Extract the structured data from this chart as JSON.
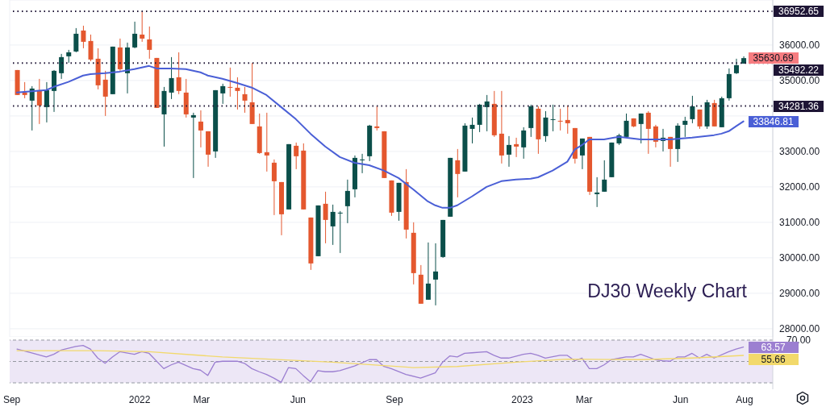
{
  "chart_data": [
    {
      "type": "candlestick",
      "x": [
        "2021-09-06",
        "2021-09-13",
        "2021-09-20",
        "2021-09-27",
        "2021-10-04",
        "2021-10-11",
        "2021-10-18",
        "2021-10-25",
        "2021-11-01",
        "2021-11-08",
        "2021-11-15",
        "2021-11-22",
        "2021-11-29",
        "2021-12-06",
        "2021-12-13",
        "2021-12-20",
        "2021-12-27",
        "2022-01-03",
        "2022-01-10",
        "2022-01-17",
        "2022-01-24",
        "2022-01-31",
        "2022-02-07",
        "2022-02-14",
        "2022-02-21",
        "2022-02-28",
        "2022-03-07",
        "2022-03-14",
        "2022-03-21",
        "2022-03-28",
        "2022-04-04",
        "2022-04-11",
        "2022-04-18",
        "2022-04-25",
        "2022-05-02",
        "2022-05-09",
        "2022-05-16",
        "2022-05-23",
        "2022-05-30",
        "2022-06-06",
        "2022-06-13",
        "2022-06-20",
        "2022-06-27",
        "2022-07-04",
        "2022-07-11",
        "2022-07-18",
        "2022-07-25",
        "2022-08-01",
        "2022-08-08",
        "2022-08-15",
        "2022-08-22",
        "2022-08-29",
        "2022-09-05",
        "2022-09-12",
        "2022-09-19",
        "2022-09-26",
        "2022-10-03",
        "2022-10-10",
        "2022-10-17",
        "2022-10-24",
        "2022-10-31",
        "2022-11-07",
        "2022-11-14",
        "2022-11-21",
        "2022-11-28",
        "2022-12-05",
        "2022-12-12",
        "2022-12-19",
        "2022-12-26",
        "2023-01-02",
        "2023-01-09",
        "2023-01-16",
        "2023-01-23",
        "2023-01-30",
        "2023-02-06",
        "2023-02-13",
        "2023-02-20",
        "2023-02-27",
        "2023-03-06",
        "2023-03-13",
        "2023-03-20",
        "2023-03-27",
        "2023-04-03",
        "2023-04-10",
        "2023-04-17",
        "2023-04-24",
        "2023-05-01",
        "2023-05-08",
        "2023-05-15",
        "2023-05-22",
        "2023-05-29",
        "2023-06-05",
        "2023-06-12",
        "2023-06-19",
        "2023-06-26",
        "2023-07-03",
        "2023-07-10",
        "2023-07-17",
        "2023-07-24",
        "2023-07-31"
      ],
      "ohlc": [
        [
          35295,
          35295,
          34591,
          34591
        ],
        [
          34659,
          34955,
          34500,
          34591
        ],
        [
          34432,
          34841,
          33591,
          34773
        ],
        [
          34727,
          35045,
          33773,
          34295
        ],
        [
          34250,
          34955,
          33818,
          34727
        ],
        [
          34705,
          35295,
          34114,
          35273
        ],
        [
          35205,
          35750,
          35045,
          35659
        ],
        [
          35682,
          35864,
          35500,
          35795
        ],
        [
          35818,
          36477,
          35795,
          36318
        ],
        [
          36409,
          36545,
          35909,
          36091
        ],
        [
          36114,
          36295,
          35545,
          35591
        ],
        [
          35614,
          35909,
          34750,
          34864
        ],
        [
          35023,
          35273,
          34000,
          34545
        ],
        [
          34614,
          35955,
          34614,
          35955
        ],
        [
          35932,
          36182,
          35273,
          35318
        ],
        [
          35205,
          36068,
          34636,
          35932
        ],
        [
          35932,
          36659,
          35909,
          36318
        ],
        [
          36295,
          36952.65,
          36091,
          36182
        ],
        [
          36159,
          36523,
          35614,
          35864
        ],
        [
          35636,
          35636,
          34227,
          34227
        ],
        [
          34045,
          34818,
          33136,
          34705
        ],
        [
          34659,
          35659,
          34477,
          35068
        ],
        [
          35091,
          35795,
          34614,
          34705
        ],
        [
          34659,
          35045,
          33955,
          34045
        ],
        [
          33955,
          34091,
          32250,
          34023
        ],
        [
          33841,
          34159,
          33114,
          33591
        ],
        [
          33568,
          33568,
          32568,
          32909
        ],
        [
          33000,
          34727,
          32818,
          34727
        ],
        [
          34636,
          34909,
          34341,
          34841
        ],
        [
          34818,
          35364,
          34545,
          34795
        ],
        [
          34795,
          35091,
          34182,
          34705
        ],
        [
          34614,
          34818,
          34091,
          34432
        ],
        [
          34386,
          35492.22,
          33773,
          33773
        ],
        [
          33705,
          34068,
          32932,
          32955
        ],
        [
          32977,
          34091,
          32432,
          32886
        ],
        [
          32682,
          32773,
          31205,
          32159
        ],
        [
          32136,
          32136,
          30636,
          31227
        ],
        [
          31364,
          33205,
          31364,
          33205
        ],
        [
          33159,
          33250,
          32500,
          32864
        ],
        [
          33023,
          33227,
          31364,
          31364
        ],
        [
          31136,
          31136,
          29659,
          29841
        ],
        [
          30045,
          31477,
          30045,
          31477
        ],
        [
          31523,
          31864,
          30409,
          31068
        ],
        [
          30886,
          31500,
          30364,
          31295
        ],
        [
          31250,
          31318,
          30136,
          31273
        ],
        [
          31455,
          32205,
          30977,
          31886
        ],
        [
          31932,
          32886,
          31705,
          32818
        ],
        [
          32750,
          32932,
          32386,
          32773
        ],
        [
          32864,
          33750,
          32727,
          33727
        ],
        [
          33705,
          34281.36,
          33591,
          33659
        ],
        [
          33568,
          33568,
          32250,
          32250
        ],
        [
          32182,
          32182,
          31182,
          31273
        ],
        [
          31295,
          32114,
          31045,
          32114
        ],
        [
          32136,
          32500,
          30545,
          30795
        ],
        [
          30705,
          31000,
          29250,
          29568
        ],
        [
          29523,
          29795,
          28705,
          28705
        ],
        [
          28818,
          30432,
          28818,
          29273
        ],
        [
          29386,
          30409,
          28659,
          29614
        ],
        [
          30023,
          31068,
          30000,
          31068
        ],
        [
          31159,
          32818,
          31159,
          32818
        ],
        [
          32750,
          33068,
          31705,
          32364
        ],
        [
          32432,
          33795,
          32432,
          33727
        ],
        [
          33636,
          33955,
          33227,
          33750
        ],
        [
          33750,
          34341,
          33545,
          34318
        ],
        [
          34250,
          34591,
          33568,
          34409
        ],
        [
          34341,
          34705,
          33409,
          33455
        ],
        [
          33500,
          34705,
          32659,
          32886
        ],
        [
          32909,
          33432,
          32568,
          33182
        ],
        [
          33205,
          33386,
          32841,
          33136
        ],
        [
          33114,
          33682,
          32795,
          33591
        ],
        [
          33659,
          34318,
          33409,
          34273
        ],
        [
          34205,
          34273,
          32932,
          33341
        ],
        [
          33432,
          34136,
          33273,
          33955
        ],
        [
          33886,
          34318,
          33568,
          33909
        ],
        [
          33864,
          34205,
          33591,
          33841
        ],
        [
          33886,
          34295,
          33500,
          33795
        ],
        [
          33659,
          33659,
          32659,
          32795
        ],
        [
          32886,
          33364,
          32500,
          33364
        ],
        [
          33409,
          33409,
          31773,
          31864
        ],
        [
          31795,
          32273,
          31432,
          31841
        ],
        [
          31864,
          32750,
          31864,
          32205
        ],
        [
          32273,
          33250,
          32273,
          33250
        ],
        [
          33227,
          33500,
          33182,
          33455
        ],
        [
          33409,
          34068,
          33409,
          33864
        ],
        [
          33932,
          33932,
          33682,
          33705
        ],
        [
          33773,
          34068,
          33227,
          34068
        ],
        [
          34091,
          34136,
          32932,
          33636
        ],
        [
          33705,
          33750,
          33114,
          33273
        ],
        [
          33295,
          33636,
          33000,
          33386
        ],
        [
          33409,
          33409,
          32568,
          33068
        ],
        [
          33068,
          33795,
          32705,
          33727
        ],
        [
          33750,
          33977,
          33409,
          33864
        ],
        [
          33909,
          34568,
          33795,
          34273
        ],
        [
          34182,
          34182,
          33636,
          33705
        ],
        [
          33705,
          34455,
          33636,
          34386
        ],
        [
          34364,
          34455,
          33705,
          33705
        ],
        [
          33682,
          34545,
          33682,
          34500
        ],
        [
          34500,
          35341,
          34432,
          35182
        ],
        [
          35205,
          35614,
          35182,
          35432
        ],
        [
          35477,
          35682,
          35477,
          35630.69
        ]
      ],
      "colors": [
        "#e4572e",
        "#e4572e",
        "#0b4f4a",
        "#e4572e",
        "#0b4f4a",
        "#0b4f4a",
        "#0b4f4a",
        "#0b4f4a",
        "#0b4f4a",
        "#e4572e",
        "#e4572e",
        "#e4572e",
        "#e4572e",
        "#0b4f4a",
        "#e4572e",
        "#0b4f4a",
        "#0b4f4a",
        "#e4572e",
        "#e4572e",
        "#e4572e",
        "#0b4f4a",
        "#0b4f4a",
        "#e4572e",
        "#e4572e",
        "#0b4f4a",
        "#e4572e",
        "#e4572e",
        "#0b4f4a",
        "#0b4f4a",
        "#e4572e",
        "#e4572e",
        "#e4572e",
        "#e4572e",
        "#e4572e",
        "#e4572e",
        "#e4572e",
        "#e4572e",
        "#0b4f4a",
        "#e4572e",
        "#e4572e",
        "#e4572e",
        "#0b4f4a",
        "#e4572e",
        "#0b4f4a",
        "#0b4f4a",
        "#0b4f4a",
        "#0b4f4a",
        "#0b4f4a",
        "#0b4f4a",
        "#e4572e",
        "#e4572e",
        "#e4572e",
        "#0b4f4a",
        "#e4572e",
        "#e4572e",
        "#e4572e",
        "#0b4f4a",
        "#0b4f4a",
        "#0b4f4a",
        "#0b4f4a",
        "#e4572e",
        "#0b4f4a",
        "#0b4f4a",
        "#0b4f4a",
        "#0b4f4a",
        "#e4572e",
        "#e4572e",
        "#0b4f4a",
        "#e4572e",
        "#0b4f4a",
        "#0b4f4a",
        "#e4572e",
        "#0b4f4a",
        "#0b4f4a",
        "#e4572e",
        "#e4572e",
        "#e4572e",
        "#0b4f4a",
        "#e4572e",
        "#0b4f4a",
        "#0b4f4a",
        "#0b4f4a",
        "#0b4f4a",
        "#0b4f4a",
        "#e4572e",
        "#0b4f4a",
        "#e4572e",
        "#e4572e",
        "#0b4f4a",
        "#e4572e",
        "#0b4f4a",
        "#0b4f4a",
        "#0b4f4a",
        "#e4572e",
        "#0b4f4a",
        "#e4572e",
        "#0b4f4a",
        "#0b4f4a",
        "#0b4f4a",
        "#0b4f4a"
      ],
      "series": [
        {
          "type": "line",
          "color": "#4a5fd6",
          "x": [
            "2021-09-06",
            "2021-10-04",
            "2021-10-11",
            "2021-10-25",
            "2021-11-08",
            "2021-11-15",
            "2021-11-29",
            "2021-12-13",
            "2021-12-27",
            "2022-01-10",
            "2022-01-17",
            "2022-01-31",
            "2022-02-14",
            "2022-02-28",
            "2022-03-07",
            "2022-03-21",
            "2022-04-04",
            "2022-04-18",
            "2022-05-02",
            "2022-05-16",
            "2022-05-30",
            "2022-06-13",
            "2022-06-27",
            "2022-07-11",
            "2022-07-25",
            "2022-08-08",
            "2022-08-22",
            "2022-09-05",
            "2022-09-19",
            "2022-10-03",
            "2022-10-10",
            "2022-10-17",
            "2022-10-24",
            "2022-10-31",
            "2022-11-14",
            "2022-11-28",
            "2022-12-12",
            "2022-12-26",
            "2023-01-09",
            "2023-01-16",
            "2023-01-30",
            "2023-02-13",
            "2023-02-20",
            "2023-02-27",
            "2023-03-06",
            "2023-03-20",
            "2023-04-03",
            "2023-04-24",
            "2023-05-22",
            "2023-06-12",
            "2023-07-03",
            "2023-07-10",
            "2023-07-17",
            "2023-07-24",
            "2023-07-31"
          ],
          "values": [
            34660,
            34730,
            34820,
            34960,
            35140,
            35180,
            35210,
            35250,
            35320,
            35410,
            35340,
            35340,
            35320,
            35230,
            35140,
            35050,
            34930,
            34800,
            34590,
            34250,
            33910,
            33500,
            33140,
            32840,
            32680,
            32610,
            32460,
            32250,
            31930,
            31590,
            31480,
            31410,
            31410,
            31480,
            31730,
            32000,
            32160,
            32210,
            32230,
            32270,
            32460,
            32710,
            33050,
            33180,
            33340,
            33340,
            33410,
            33340,
            33340,
            33390,
            33460,
            33500,
            33570,
            33710,
            33846.81
          ],
          "value_labels": [
            null,
            null,
            null,
            null,
            null,
            null,
            null,
            null,
            null,
            null,
            null,
            null,
            null,
            null,
            null,
            null,
            null,
            null,
            null,
            null,
            null,
            null,
            null,
            null,
            null,
            null,
            null,
            null,
            null,
            null,
            null,
            null,
            null,
            null,
            null,
            null,
            null,
            null,
            null,
            null,
            null,
            null,
            null,
            null,
            null,
            null,
            null,
            null,
            null,
            null,
            null,
            null,
            null,
            null,
            "33846.81"
          ]
        }
      ],
      "ref_lines": [
        {
          "axis": "y",
          "value": 36952.65,
          "label": "36952.65",
          "color": "#1e1535",
          "line_style": "dotted"
        },
        {
          "axis": "y",
          "value": 35492.22,
          "label": "35492.22",
          "color": "#1e1535",
          "line_style": "dotted"
        },
        {
          "axis": "y",
          "value": 34281.36,
          "label": "34281.36",
          "color": "#1e1535",
          "line_style": "dotted"
        }
      ],
      "annotations": [
        {
          "text": "35630.69",
          "x": "2023-07-31",
          "y": 35630.69
        },
        "DJ30 Weekly Chart"
      ],
      "xlim": [
        "2021-08-30",
        "2023-08-28"
      ],
      "xticks": [
        {
          "value": "2021-09-01",
          "label": null
        },
        {
          "value": "2022-01-01",
          "label": null
        },
        {
          "value": "2022-03-01",
          "label": null
        },
        {
          "value": "2022-06-01",
          "label": null
        },
        {
          "value": "2022-09-01",
          "label": null
        },
        {
          "value": "2023-01-01",
          "label": null
        },
        {
          "value": "2023-03-01",
          "label": null
        },
        {
          "value": "2023-06-01",
          "label": null
        },
        {
          "value": "2023-08-01",
          "label": null
        }
      ],
      "ylim": [
        27770,
        37270
      ],
      "yticks": [
        {
          "value": 28000,
          "label": "28000.00"
        },
        {
          "value": 29000,
          "label": "29000.00"
        },
        {
          "value": 30000,
          "label": "30000.00"
        },
        {
          "value": 31000,
          "label": "31000.00"
        },
        {
          "value": 32000,
          "label": "32000.00"
        },
        {
          "value": 33000,
          "label": "33000.00"
        },
        {
          "value": 34000,
          "label": null
        },
        {
          "value": 35000,
          "label": "35000.00"
        },
        {
          "value": 36000,
          "label": "36000.00"
        }
      ],
      "grid": true,
      "tick_labels": "y"
    },
    {
      "type": "line",
      "series": [
        {
          "color": "#9c7fd1",
          "x": [
            "2021-09-06",
            "2021-09-20",
            "2021-10-04",
            "2021-10-11",
            "2021-10-18",
            "2021-11-01",
            "2021-11-08",
            "2021-11-15",
            "2021-11-22",
            "2021-11-29",
            "2021-12-06",
            "2021-12-13",
            "2021-12-27",
            "2022-01-03",
            "2022-01-10",
            "2022-01-24",
            "2022-01-31",
            "2022-02-07",
            "2022-02-21",
            "2022-02-28",
            "2022-03-07",
            "2022-03-14",
            "2022-03-21",
            "2022-04-04",
            "2022-04-11",
            "2022-04-18",
            "2022-04-25",
            "2022-05-02",
            "2022-05-09",
            "2022-05-16",
            "2022-05-23",
            "2022-05-30",
            "2022-06-06",
            "2022-06-13",
            "2022-06-20",
            "2022-06-27",
            "2022-07-04",
            "2022-07-11",
            "2022-07-25",
            "2022-08-08",
            "2022-08-15",
            "2022-08-22",
            "2022-08-29",
            "2022-09-12",
            "2022-09-26",
            "2022-10-03",
            "2022-10-10",
            "2022-10-17",
            "2022-10-24",
            "2022-10-31",
            "2022-11-07",
            "2022-11-14",
            "2022-11-28",
            "2022-12-05",
            "2022-12-12",
            "2022-12-19",
            "2023-01-02",
            "2023-01-09",
            "2023-01-16",
            "2023-01-23",
            "2023-02-06",
            "2023-02-13",
            "2023-02-20",
            "2023-02-27",
            "2023-03-06",
            "2023-03-13",
            "2023-03-20",
            "2023-03-27",
            "2023-04-10",
            "2023-04-17",
            "2023-04-24",
            "2023-05-08",
            "2023-05-15",
            "2023-05-22",
            "2023-05-29",
            "2023-06-05",
            "2023-06-12",
            "2023-06-19",
            "2023-06-26",
            "2023-07-03",
            "2023-07-17",
            "2023-07-24",
            "2023-07-31"
          ],
          "values": [
            61.6,
            58.1,
            54.2,
            56.7,
            60.6,
            64.0,
            65.0,
            61.6,
            53.2,
            48.3,
            54.2,
            59.1,
            56.7,
            59.1,
            57.6,
            43.3,
            46.8,
            49.3,
            43.3,
            41.9,
            36.9,
            49.3,
            50.2,
            50.2,
            48.3,
            43.3,
            40.4,
            37.9,
            34.5,
            30.5,
            44.3,
            43.3,
            36.9,
            31.0,
            41.4,
            40.4,
            40.4,
            41.4,
            45.8,
            51.7,
            51.7,
            45.3,
            43.3,
            37.9,
            34.5,
            36.9,
            39.4,
            49.3,
            55.2,
            54.2,
            57.6,
            58.1,
            59.1,
            55.7,
            53.2,
            53.2,
            56.7,
            57.6,
            55.7,
            53.2,
            55.7,
            55.7,
            50.7,
            53.2,
            43.3,
            43.3,
            46.8,
            51.7,
            54.2,
            54.2,
            56.7,
            51.7,
            50.7,
            50.2,
            54.2,
            54.2,
            57.6,
            53.2,
            56.7,
            53.2,
            59.1,
            61.6,
            63.57
          ],
          "value_labels": [
            null,
            null,
            null,
            null,
            null,
            null,
            null,
            null,
            null,
            null,
            null,
            null,
            null,
            null,
            null,
            null,
            null,
            null,
            null,
            null,
            null,
            null,
            null,
            null,
            null,
            null,
            null,
            null,
            null,
            null,
            null,
            null,
            null,
            null,
            null,
            null,
            null,
            null,
            null,
            null,
            null,
            null,
            null,
            null,
            null,
            null,
            null,
            null,
            null,
            null,
            null,
            null,
            null,
            null,
            null,
            null,
            null,
            null,
            null,
            null,
            null,
            null,
            null,
            null,
            null,
            null,
            null,
            null,
            null,
            null,
            null,
            null,
            null,
            null,
            null,
            null,
            null,
            null,
            null,
            null,
            null,
            null,
            "63.57"
          ]
        },
        {
          "color": "#f2d96b",
          "x": [
            "2021-09-06",
            "2021-11-22",
            "2022-01-10",
            "2022-03-21",
            "2022-07-04",
            "2022-09-19",
            "2022-10-31",
            "2022-12-26",
            "2023-02-13",
            "2023-04-24",
            "2023-06-12",
            "2023-07-31"
          ],
          "values": [
            60.1,
            60.1,
            59.1,
            54.2,
            49.3,
            44.3,
            45.3,
            49.3,
            52.2,
            51.7,
            53.2,
            55.66
          ],
          "value_labels": [
            null,
            null,
            null,
            null,
            null,
            null,
            null,
            null,
            null,
            null,
            null,
            "55.66"
          ]
        }
      ],
      "bands": [
        {
          "axis": "y",
          "from": 30,
          "to": 70,
          "color": "#ede7f6"
        }
      ],
      "ref_lines": [
        {
          "axis": "y",
          "value": 70,
          "label": "70.00",
          "color": "#9598a1",
          "line_style": "dashed"
        },
        {
          "axis": "y",
          "value": 50,
          "color": "#9598a1",
          "line_style": "dashed"
        },
        {
          "axis": "y",
          "value": 30,
          "color": "#9598a1",
          "line_style": "dashed"
        }
      ],
      "xlim": [
        "2021-08-30",
        "2023-08-28"
      ],
      "xticks": [
        {
          "value": "2021-09-01",
          "label": "Sep"
        },
        {
          "value": "2022-01-01",
          "label": "2022"
        },
        {
          "value": "2022-03-01",
          "label": "Mar"
        },
        {
          "value": "2022-06-01",
          "label": "Jun"
        },
        {
          "value": "2022-09-01",
          "label": "Sep"
        },
        {
          "value": "2023-01-01",
          "label": "2023"
        },
        {
          "value": "2023-03-01",
          "label": "Mar"
        },
        {
          "value": "2023-06-01",
          "label": "Jun"
        },
        {
          "value": "2023-08-01",
          "label": "Aug"
        }
      ],
      "ylim": [
        24,
        73
      ]
    }
  ]
}
